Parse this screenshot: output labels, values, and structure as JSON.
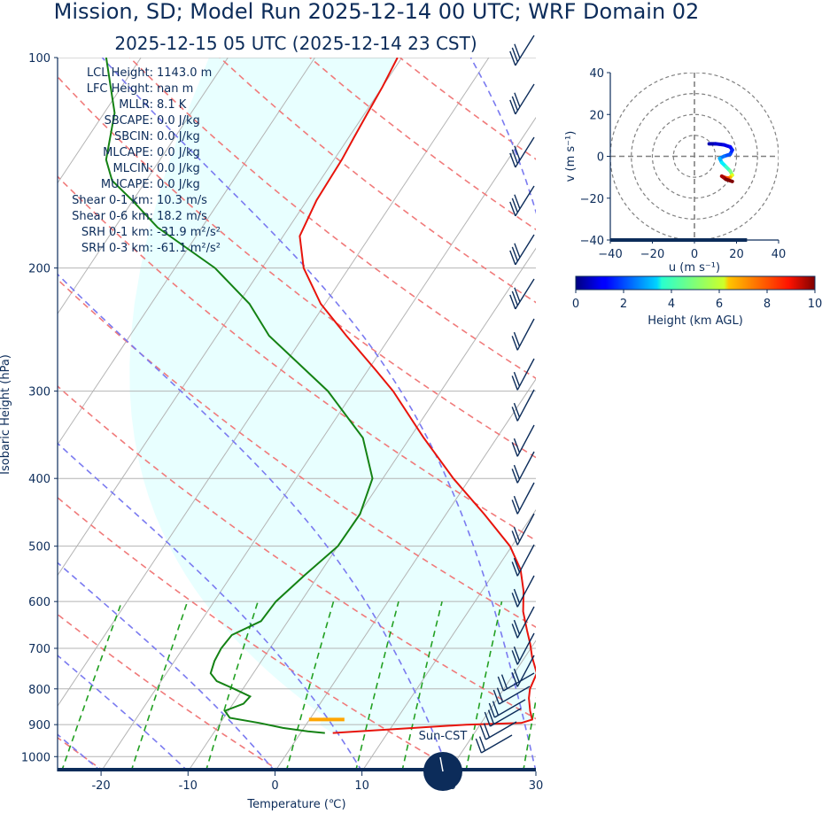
{
  "titles": {
    "main": "Mission, SD; Model Run 2025-12-14 00 UTC; WRF Domain 02",
    "sub": "2025-12-15 05 UTC  (2025-12-14 23 CST)"
  },
  "stats": [
    {
      "label": "LCL Height:",
      "value": "1143.0 m"
    },
    {
      "label": "LFC Height:",
      "value": "nan m"
    },
    {
      "label": "MLLR:",
      "value": "8.1 K"
    },
    {
      "label": "SBCAPE:",
      "value": "0.0 J/kg"
    },
    {
      "label": "SBCIN:",
      "value": "0.0 J/kg"
    },
    {
      "label": "MLCAPE:",
      "value": "0.0 J/kg"
    },
    {
      "label": "MLCIN:",
      "value": "0.0 J/kg"
    },
    {
      "label": "MUCAPE:",
      "value": "0.0 J/kg"
    },
    {
      "label": "Shear 0-1 km:",
      "value": "10.3 m/s"
    },
    {
      "label": "Shear 0-6 km:",
      "value": "18.2 m/s"
    },
    {
      "label": "SRH 0-1 km:",
      "value": "-31.9 m²/s²"
    },
    {
      "label": "SRH 0-3 km:",
      "value": "-61.1 m²/s²"
    }
  ],
  "sun_label": "Sun-CST",
  "colors": {
    "text": "#0c2c5a",
    "temperature": "#e8140c",
    "dewpoint": "#148214",
    "parcel_shade": "#e8ffff",
    "dry_adiabat": "#f07a7a",
    "moist_adiabat": "#7a7af0",
    "mixing_ratio": "#22a022",
    "isotherm": "#b4b4b4",
    "isobar": "#b4b4b4",
    "lcl_marker": "#ffa500"
  },
  "chart_data": [
    {
      "type": "line",
      "name": "skew-t",
      "xlabel": "Temperature (℃)",
      "ylabel": "Isobaric Height (hPa)",
      "x_ticks": [
        -20,
        -10,
        0,
        10,
        20,
        30
      ],
      "y_ticks": [
        100,
        200,
        300,
        400,
        500,
        600,
        700,
        800,
        900,
        1000
      ],
      "xlim": [
        -25,
        30
      ],
      "ylim": [
        1050,
        100
      ],
      "y_scale": "log",
      "temperature": [
        [
          925,
          3.7
        ],
        [
          900,
          18.4
        ],
        [
          895,
          24.6
        ],
        [
          885,
          25.6
        ],
        [
          860,
          24.7
        ],
        [
          825,
          23.6
        ],
        [
          800,
          23.0
        ],
        [
          760,
          22.6
        ],
        [
          720,
          20.8
        ],
        [
          690,
          19.6
        ],
        [
          660,
          18.2
        ],
        [
          620,
          16.3
        ],
        [
          580,
          14.8
        ],
        [
          540,
          12.8
        ],
        [
          500,
          9.8
        ],
        [
          450,
          4.4
        ],
        [
          400,
          -1.9
        ],
        [
          350,
          -8.4
        ],
        [
          300,
          -15.5
        ],
        [
          280,
          -19.1
        ],
        [
          250,
          -25.1
        ],
        [
          225,
          -30.5
        ],
        [
          200,
          -35.2
        ],
        [
          180,
          -38.1
        ],
        [
          160,
          -38.9
        ],
        [
          150,
          -39.0
        ],
        [
          140,
          -39.1
        ],
        [
          130,
          -39.4
        ],
        [
          120,
          -39.7
        ],
        [
          110,
          -40.0
        ],
        [
          100,
          -40.5
        ]
      ],
      "dewpoint": [
        [
          925,
          2.8
        ],
        [
          920,
          0.7
        ],
        [
          910,
          -2.4
        ],
        [
          895,
          -5.5
        ],
        [
          880,
          -9.3
        ],
        [
          860,
          -10.4
        ],
        [
          840,
          -8.8
        ],
        [
          820,
          -8.6
        ],
        [
          800,
          -11.0
        ],
        [
          780,
          -13.6
        ],
        [
          760,
          -14.9
        ],
        [
          730,
          -15.4
        ],
        [
          700,
          -15.6
        ],
        [
          670,
          -15.4
        ],
        [
          640,
          -13.1
        ],
        [
          600,
          -12.9
        ],
        [
          550,
          -11.6
        ],
        [
          500,
          -10.0
        ],
        [
          450,
          -9.9
        ],
        [
          400,
          -11.2
        ],
        [
          350,
          -15.4
        ],
        [
          300,
          -23.0
        ],
        [
          250,
          -34.0
        ],
        [
          225,
          -38.7
        ],
        [
          200,
          -45.4
        ],
        [
          175,
          -55.1
        ],
        [
          160,
          -60.1
        ],
        [
          150,
          -63.9
        ],
        [
          140,
          -66.2
        ],
        [
          120,
          -68.8
        ],
        [
          100,
          -74.0
        ]
      ],
      "lcl_pressure": 885
    },
    {
      "type": "scatter",
      "name": "hodograph",
      "xlabel": "u (m s⁻¹)",
      "ylabel": "v (m s⁻¹)",
      "xlim": [
        -40,
        40
      ],
      "ylim": [
        -40,
        40
      ],
      "x_ticks": [
        -40,
        -20,
        0,
        20,
        40
      ],
      "y_ticks": [
        40,
        20,
        0,
        -20,
        -40
      ],
      "rings": [
        10,
        20,
        30,
        40
      ],
      "points": [
        [
          7,
          6,
          0.2
        ],
        [
          10,
          6,
          0.5
        ],
        [
          14,
          5.5,
          0.8
        ],
        [
          17,
          4.5,
          1.0
        ],
        [
          18,
          3,
          1.3
        ],
        [
          17,
          1,
          1.6
        ],
        [
          14,
          0,
          2.0
        ],
        [
          12,
          -1,
          2.4
        ],
        [
          13,
          -3,
          3.0
        ],
        [
          15,
          -5,
          3.6
        ],
        [
          17,
          -7,
          4.3
        ],
        [
          18,
          -9,
          5.0
        ],
        [
          17,
          -10,
          6.0
        ],
        [
          16,
          -10.5,
          7.0
        ],
        [
          14,
          -10,
          8.0
        ],
        [
          13,
          -9.5,
          9.0
        ],
        [
          15,
          -11,
          9.6
        ],
        [
          18,
          -12,
          10.0
        ]
      ]
    },
    {
      "type": "colorbar",
      "name": "height-colorbar",
      "label": "Height (km AGL)",
      "range": [
        0,
        10
      ],
      "ticks": [
        0,
        2,
        4,
        6,
        8,
        10
      ]
    }
  ]
}
